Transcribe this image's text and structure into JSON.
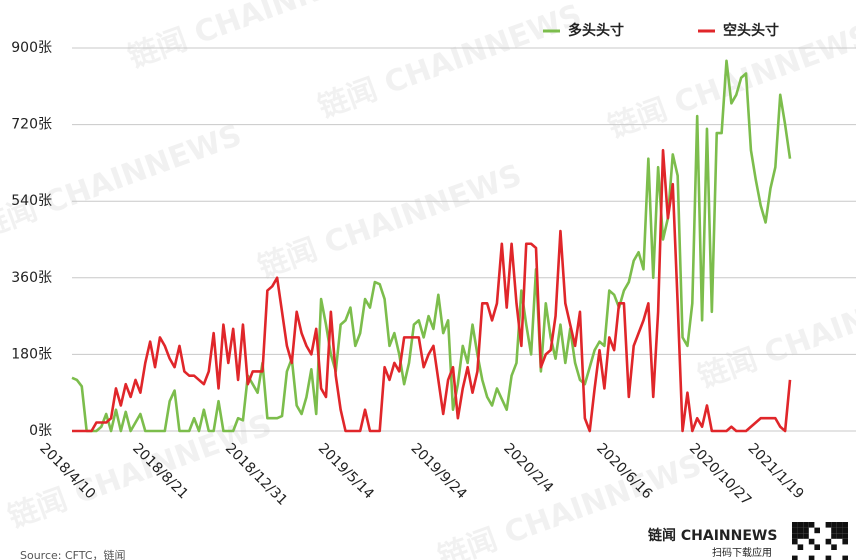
{
  "chart_data": {
    "type": "line",
    "categories": [
      "2018/4/10",
      null,
      null,
      null,
      null,
      null,
      null,
      null,
      null,
      null,
      null,
      null,
      null,
      null,
      null,
      null,
      null,
      null,
      null,
      "2018/8/21",
      null,
      null,
      null,
      null,
      null,
      null,
      null,
      null,
      null,
      null,
      null,
      null,
      null,
      null,
      null,
      null,
      null,
      null,
      "2018/12/31",
      null,
      null,
      null,
      null,
      null,
      null,
      null,
      null,
      null,
      null,
      null,
      null,
      null,
      null,
      null,
      null,
      null,
      null,
      "2019/5/14",
      null,
      null,
      null,
      null,
      null,
      null,
      null,
      null,
      null,
      null,
      null,
      null,
      null,
      null,
      null,
      null,
      null,
      null,
      "2019/9/24",
      null,
      null,
      null,
      null,
      null,
      null,
      null,
      null,
      null,
      null,
      null,
      null,
      null,
      null,
      null,
      null,
      null,
      null,
      "2020/2/4",
      null,
      null,
      null,
      null,
      null,
      null,
      null,
      null,
      null,
      null,
      null,
      null,
      null,
      null,
      null,
      null,
      null,
      null,
      "2020/6/16",
      null,
      null,
      null,
      null,
      null,
      null,
      null,
      null,
      null,
      null,
      null,
      null,
      null,
      null,
      null,
      null,
      null,
      null,
      "2020/10/27",
      null,
      null,
      null,
      null,
      null,
      null,
      null,
      null,
      null,
      null,
      null,
      "2021/1/19",
      null,
      null
    ],
    "series": [
      {
        "name": "多头头寸",
        "color": "#7cbd4c",
        "values": [
          125,
          120,
          105,
          0,
          0,
          0,
          10,
          40,
          0,
          50,
          0,
          45,
          0,
          20,
          40,
          0,
          0,
          0,
          0,
          0,
          70,
          95,
          0,
          0,
          0,
          30,
          0,
          50,
          0,
          0,
          70,
          0,
          0,
          0,
          30,
          25,
          130,
          110,
          90,
          160,
          30,
          30,
          30,
          35,
          140,
          170,
          60,
          40,
          80,
          145,
          40,
          310,
          250,
          180,
          140,
          250,
          260,
          290,
          200,
          230,
          310,
          290,
          350,
          345,
          310,
          200,
          230,
          180,
          110,
          160,
          250,
          260,
          220,
          270,
          240,
          320,
          230,
          260,
          50,
          110,
          200,
          160,
          250,
          180,
          120,
          80,
          60,
          100,
          75,
          50,
          130,
          160,
          330,
          250,
          180,
          380,
          140,
          300,
          220,
          170,
          250,
          160,
          240,
          160,
          120,
          110,
          150,
          190,
          210,
          200,
          330,
          320,
          290,
          330,
          350,
          400,
          420,
          380,
          640,
          360,
          620,
          450,
          500,
          650,
          600,
          220,
          200,
          300,
          740,
          260,
          710,
          280,
          700,
          700,
          870,
          770,
          790,
          830,
          840,
          660,
          590,
          530,
          490,
          570,
          620,
          790,
          720,
          640
        ]
      },
      {
        "name": "空头头寸",
        "color": "#e0262a",
        "values": [
          0,
          0,
          0,
          0,
          0,
          20,
          20,
          20,
          30,
          100,
          60,
          110,
          80,
          120,
          90,
          160,
          210,
          150,
          220,
          200,
          170,
          150,
          200,
          140,
          130,
          130,
          120,
          110,
          140,
          230,
          100,
          250,
          160,
          240,
          120,
          250,
          110,
          140,
          140,
          140,
          330,
          340,
          360,
          280,
          200,
          160,
          280,
          230,
          200,
          180,
          240,
          100,
          80,
          280,
          130,
          50,
          0,
          0,
          0,
          0,
          50,
          0,
          0,
          0,
          150,
          120,
          160,
          140,
          220,
          220,
          220,
          220,
          150,
          180,
          200,
          120,
          40,
          120,
          150,
          30,
          100,
          150,
          90,
          140,
          300,
          300,
          260,
          300,
          440,
          290,
          440,
          300,
          200,
          440,
          440,
          430,
          150,
          180,
          190,
          270,
          470,
          300,
          250,
          200,
          280,
          30,
          0,
          100,
          190,
          100,
          220,
          190,
          300,
          300,
          80,
          200,
          230,
          260,
          300,
          80,
          280,
          660,
          500,
          580,
          300,
          0,
          90,
          0,
          30,
          10,
          60,
          0,
          0,
          0,
          0,
          10,
          0,
          0,
          0,
          10,
          20,
          30,
          30,
          30,
          30,
          10,
          0,
          120
        ]
      }
    ],
    "ylim": [
      0,
      900
    ],
    "yticks": [
      {
        "value": 0,
        "label": "0张"
      },
      {
        "value": 180,
        "label": "180张"
      },
      {
        "value": 360,
        "label": "360张"
      },
      {
        "value": 540,
        "label": "540张"
      },
      {
        "value": 720,
        "label": "720张"
      },
      {
        "value": 900,
        "label": "900张"
      }
    ],
    "grid": true,
    "source": "Source: CFTC，链闻",
    "watermark": "链闻 CHAINNEWS",
    "logo": "链闻 CHAINNEWS",
    "logo_sub": "扫码下载应用"
  }
}
